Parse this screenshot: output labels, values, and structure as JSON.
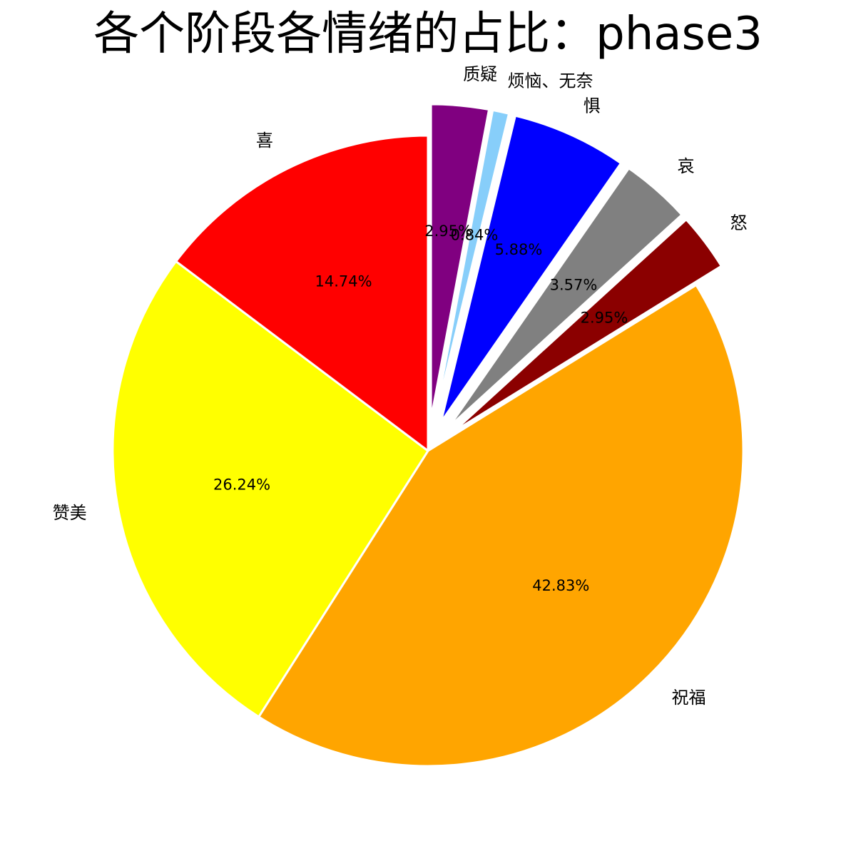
{
  "chart_data": {
    "type": "pie",
    "title": "各个阶段各情绪的占比：phase3",
    "start_angle_deg": 90,
    "direction": "clockwise",
    "legend": "none",
    "slices": [
      {
        "label": "质疑",
        "value": 2.95,
        "pct_label": "2.95%",
        "color": "#800080",
        "exploded": true
      },
      {
        "label": "烦恼、无奈",
        "value": 0.84,
        "pct_label": "0.84%",
        "color": "#87CEFA",
        "exploded": true
      },
      {
        "label": "惧",
        "value": 5.88,
        "pct_label": "5.88%",
        "color": "#0000FF",
        "exploded": true
      },
      {
        "label": "哀",
        "value": 3.57,
        "pct_label": "3.57%",
        "color": "#808080",
        "exploded": true
      },
      {
        "label": "怒",
        "value": 2.95,
        "pct_label": "2.95%",
        "color": "#8B0000",
        "exploded": true
      },
      {
        "label": "祝福",
        "value": 42.83,
        "pct_label": "42.83%",
        "color": "#FFA500",
        "exploded": false
      },
      {
        "label": "赞美",
        "value": 26.24,
        "pct_label": "26.24%",
        "color": "#FFFF00",
        "exploded": false
      },
      {
        "label": "喜",
        "value": 14.74,
        "pct_label": "14.74%",
        "color": "#FF0000",
        "exploded": false
      }
    ]
  }
}
